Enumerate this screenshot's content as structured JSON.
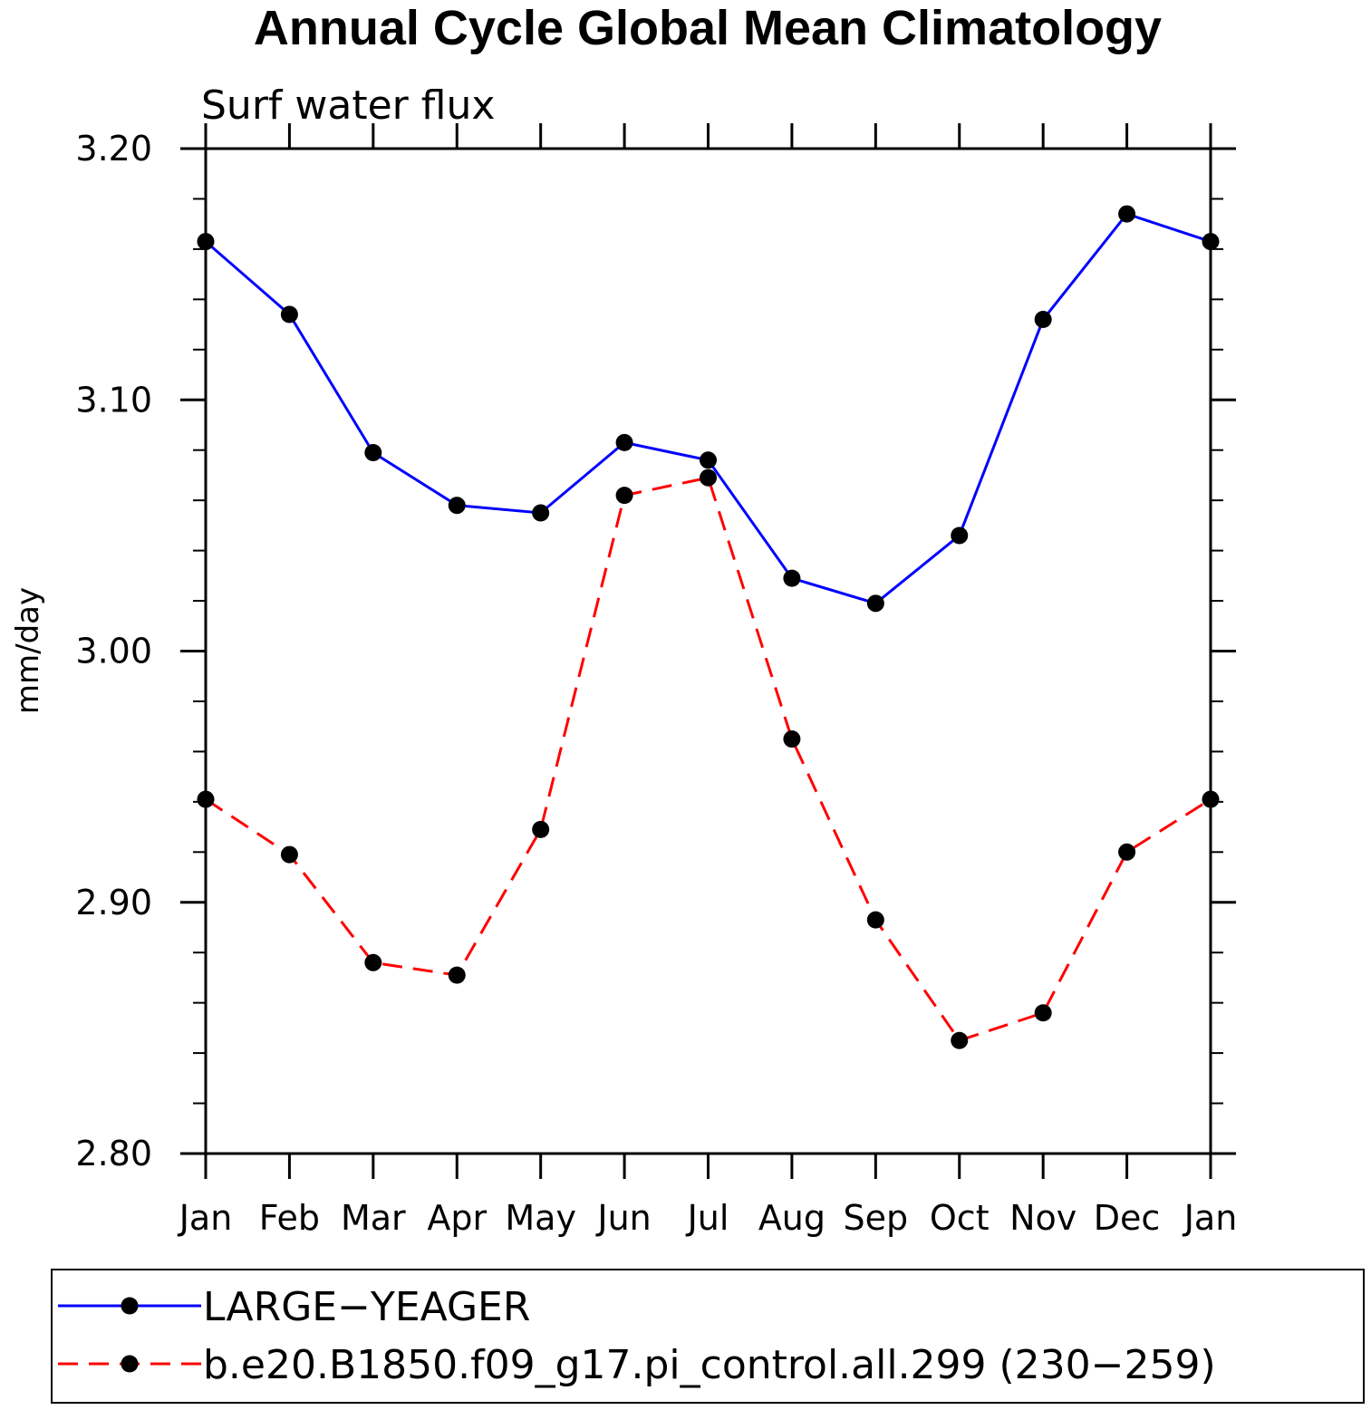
{
  "chart_data": {
    "type": "line",
    "title": "Annual Cycle Global Mean Climatology",
    "subtitle": "Surf water flux",
    "xlabel": "",
    "ylabel": "mm/day",
    "ylim": [
      2.8,
      3.2
    ],
    "yticks": [
      2.8,
      2.9,
      3.0,
      3.1,
      3.2
    ],
    "ytick_labels": [
      "2.80",
      "2.90",
      "3.00",
      "3.10",
      "3.20"
    ],
    "categories": [
      "Jan",
      "Feb",
      "Mar",
      "Apr",
      "May",
      "Jun",
      "Jul",
      "Aug",
      "Sep",
      "Oct",
      "Nov",
      "Dec",
      "Jan"
    ],
    "grid": false,
    "legend_position": "bottom",
    "series": [
      {
        "name": "LARGE−YEAGER",
        "color": "#0000ff",
        "dash": "solid",
        "marker_color": "#000000",
        "values": [
          3.163,
          3.134,
          3.079,
          3.058,
          3.055,
          3.083,
          3.076,
          3.029,
          3.019,
          3.046,
          3.132,
          3.174,
          3.163
        ]
      },
      {
        "name": "b.e20.B1850.f09_g17.pi_control.all.299 (230−259)",
        "color": "#ff0000",
        "dash": "dashed",
        "marker_color": "#000000",
        "values": [
          2.941,
          2.919,
          2.876,
          2.871,
          2.929,
          3.062,
          3.069,
          2.965,
          2.893,
          2.845,
          2.856,
          2.92,
          2.941
        ]
      }
    ]
  }
}
